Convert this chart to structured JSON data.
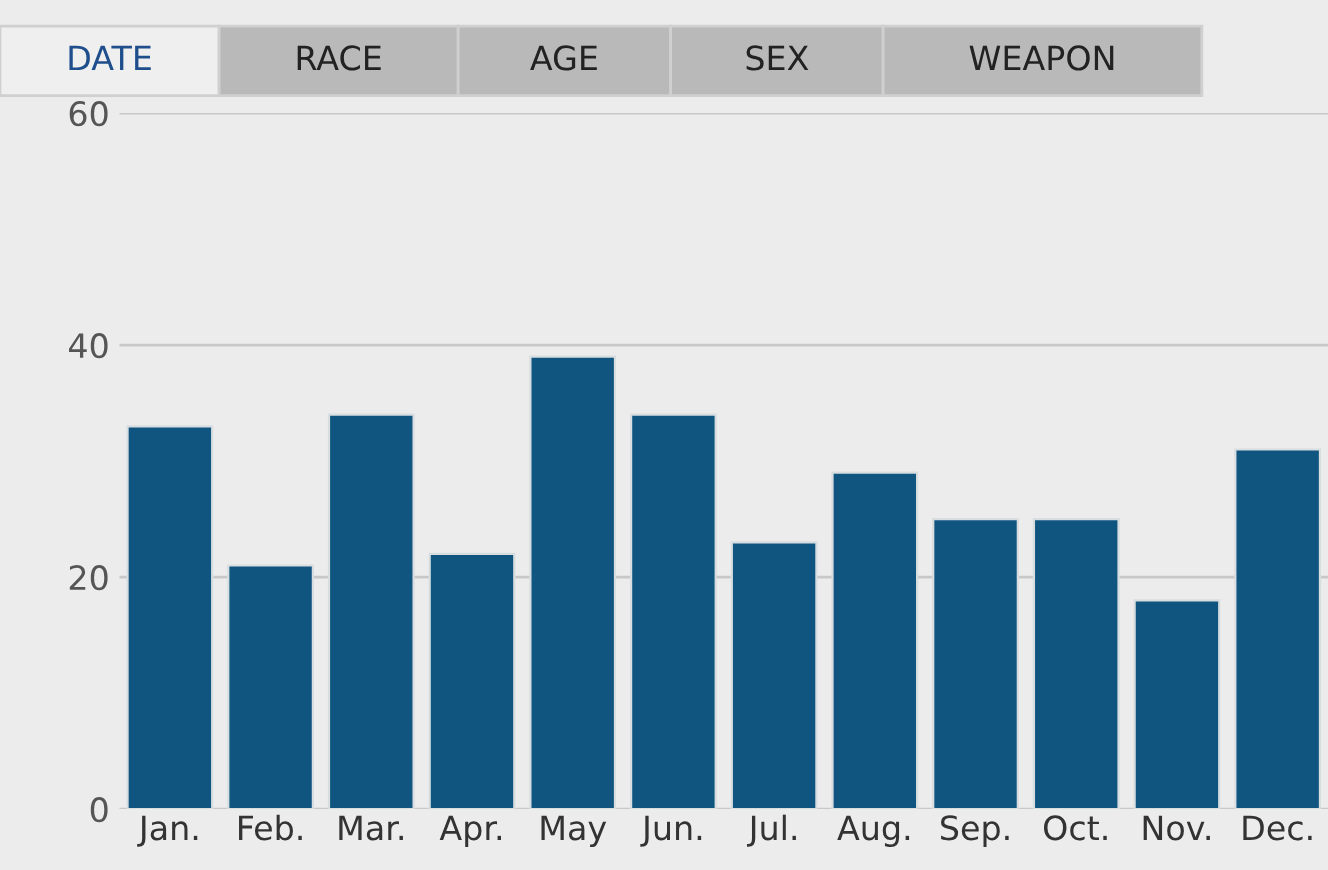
{
  "chart_data": {
    "type": "bar",
    "categories": [
      "Jan.",
      "Feb.",
      "Mar.",
      "Apr.",
      "May",
      "Jun.",
      "Jul.",
      "Aug.",
      "Sep.",
      "Oct.",
      "Nov.",
      "Dec."
    ],
    "values": [
      33,
      21,
      34,
      22,
      39,
      34,
      23,
      29,
      25,
      25,
      18,
      31
    ],
    "color": "#0f5580",
    "ylim": [
      0,
      60
    ],
    "yticks": [
      0,
      20,
      40,
      60
    ],
    "grid": "y",
    "annotations": [
      "DATE",
      "RACE",
      "AGE",
      "SEX",
      "WEAPON"
    ]
  }
}
